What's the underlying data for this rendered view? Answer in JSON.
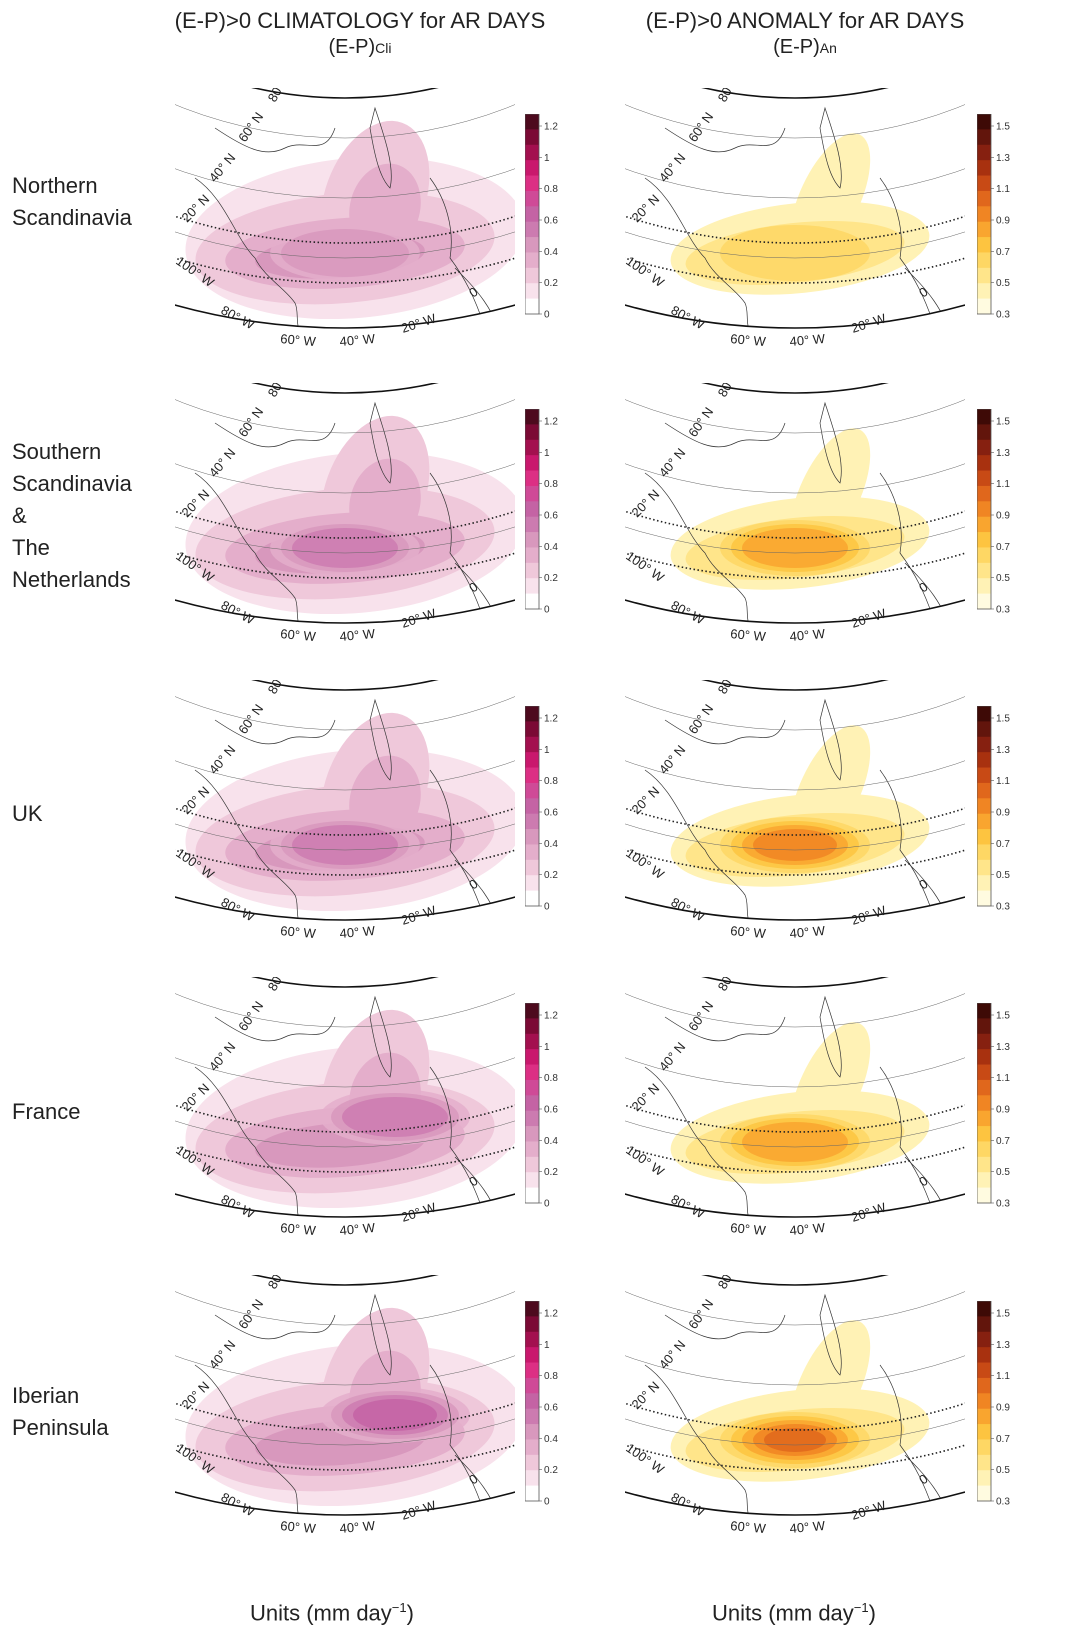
{
  "columns": [
    {
      "title": "(E-P)>0 CLIMATOLOGY for AR DAYS",
      "subtitle_main": "(E-P)",
      "subtitle_sub": "Cli"
    },
    {
      "title": "(E-P)>0 ANOMALY for AR DAYS",
      "subtitle_main": "(E-P)",
      "subtitle_sub": "An"
    }
  ],
  "rows": [
    {
      "label": "Northern\nScandinavia",
      "anomaly_intensity": 0.15
    },
    {
      "label": "Southern\nScandinavia\n&\nThe\nNetherlands",
      "anomaly_intensity": 0.55
    },
    {
      "label": "UK",
      "anomaly_intensity": 0.6
    },
    {
      "label": "France",
      "anomaly_intensity": 0.5
    },
    {
      "label": "Iberian\nPeninsula",
      "anomaly_intensity": 0.9
    }
  ],
  "map_labels": {
    "lat": [
      "80",
      "60",
      "40",
      "20"
    ],
    "lon": [
      "100",
      "80",
      "60",
      "40",
      "20",
      "0"
    ],
    "lat_suffix": "N",
    "lon_suffix": "W",
    "degree": "°"
  },
  "colorbars": {
    "climatology": {
      "ticks": [
        "1.2",
        "1",
        "0.8",
        "0.6",
        "0.4",
        "0.2",
        "0"
      ],
      "colors": [
        "#ffffff",
        "#f8e2ec",
        "#efc8da",
        "#e4aecb",
        "#d898bd",
        "#cc7bb0",
        "#c463a4",
        "#cf4a97",
        "#dc2f84",
        "#c9186d",
        "#a3104f",
        "#7b0a35",
        "#4d0a1e"
      ]
    },
    "anomaly": {
      "ticks": [
        "1.5",
        "1.3",
        "1.1",
        "0.9",
        "0.7",
        "0.5",
        "0.3"
      ],
      "colors": [
        "#fffbe0",
        "#fff2b5",
        "#ffe58a",
        "#fed764",
        "#fdc440",
        "#f9a52f",
        "#f08523",
        "#e0671c",
        "#c84a15",
        "#a8310f",
        "#862010",
        "#62150c",
        "#3e0a06"
      ]
    }
  },
  "units": {
    "text": "Units (mm day",
    "sup": "−1",
    "close": ")"
  }
}
